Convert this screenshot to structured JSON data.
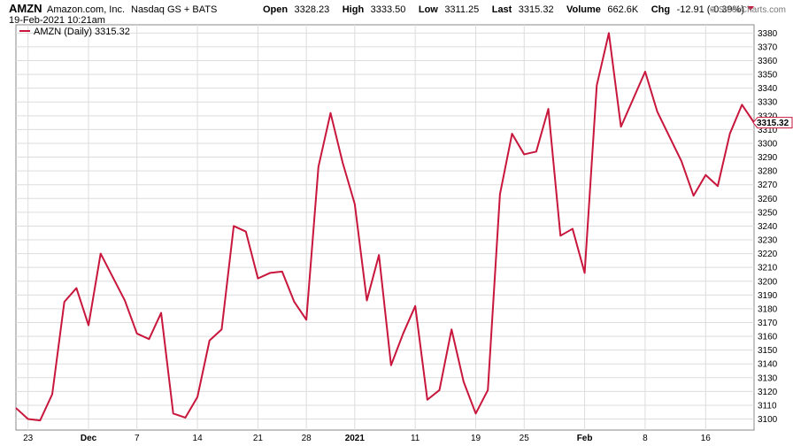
{
  "header": {
    "symbol": "AMZN",
    "company": "Amazon.com, Inc.",
    "exchange": "Nasdaq GS + BATS",
    "datetime": "19-Feb-2021 10:21am",
    "open_label": "Open",
    "open_value": "3328.23",
    "high_label": "High",
    "high_value": "3333.50",
    "low_label": "Low",
    "low_value": "3311.25",
    "last_label": "Last",
    "last_value": "3315.32",
    "volume_label": "Volume",
    "volume_value": "662.6K",
    "chg_label": "Chg",
    "chg_value": "-12.91 (-0.39%)",
    "watermark": "© StockCharts.com"
  },
  "colors": {
    "line": "#c8163c",
    "grid": "#dddddd",
    "down_arrow": "#c8163c"
  },
  "chart_data": {
    "type": "line",
    "title": "",
    "xlabel": "",
    "ylabel": "",
    "ylim": [
      3092,
      3386
    ],
    "yticks": [
      3100,
      3110,
      3120,
      3130,
      3140,
      3150,
      3160,
      3170,
      3180,
      3190,
      3200,
      3210,
      3220,
      3230,
      3240,
      3250,
      3260,
      3270,
      3280,
      3290,
      3300,
      3310,
      3320,
      3330,
      3340,
      3350,
      3360,
      3370,
      3380
    ],
    "grid": true,
    "legend_position": "top-left",
    "legend_label": "AMZN (Daily) 3315.32",
    "last_price_label": "3315.32",
    "x_labels": [
      {
        "label": "23",
        "index": 1,
        "bold": false
      },
      {
        "label": "Dec",
        "index": 6,
        "bold": true
      },
      {
        "label": "7",
        "index": 10,
        "bold": false
      },
      {
        "label": "14",
        "index": 15,
        "bold": false
      },
      {
        "label": "21",
        "index": 20,
        "bold": false
      },
      {
        "label": "28",
        "index": 24,
        "bold": false
      },
      {
        "label": "2021",
        "index": 28,
        "bold": true
      },
      {
        "label": "11",
        "index": 33,
        "bold": false
      },
      {
        "label": "19",
        "index": 38,
        "bold": false
      },
      {
        "label": "25",
        "index": 42,
        "bold": false
      },
      {
        "label": "Feb",
        "index": 47,
        "bold": true
      },
      {
        "label": "8",
        "index": 52,
        "bold": false
      },
      {
        "label": "16",
        "index": 57,
        "bold": false
      }
    ],
    "series": [
      {
        "name": "AMZN (Daily)",
        "values": [
          3108,
          3100,
          3099,
          3118,
          3185,
          3195,
          3168,
          3220,
          3203,
          3186,
          3162,
          3158,
          3177,
          3104,
          3101,
          3116,
          3157,
          3165,
          3240,
          3236,
          3202,
          3206,
          3207,
          3185,
          3172,
          3283,
          3322,
          3286,
          3256,
          3186,
          3219,
          3139,
          3162,
          3182,
          3114,
          3121,
          3165,
          3127,
          3104,
          3121,
          3263,
          3307,
          3292,
          3294,
          3325,
          3233,
          3238,
          3206,
          3342,
          3380,
          3312,
          3332,
          3352,
          3323,
          3305,
          3287,
          3262,
          3277,
          3269,
          3307,
          3328,
          3315
        ]
      }
    ]
  }
}
